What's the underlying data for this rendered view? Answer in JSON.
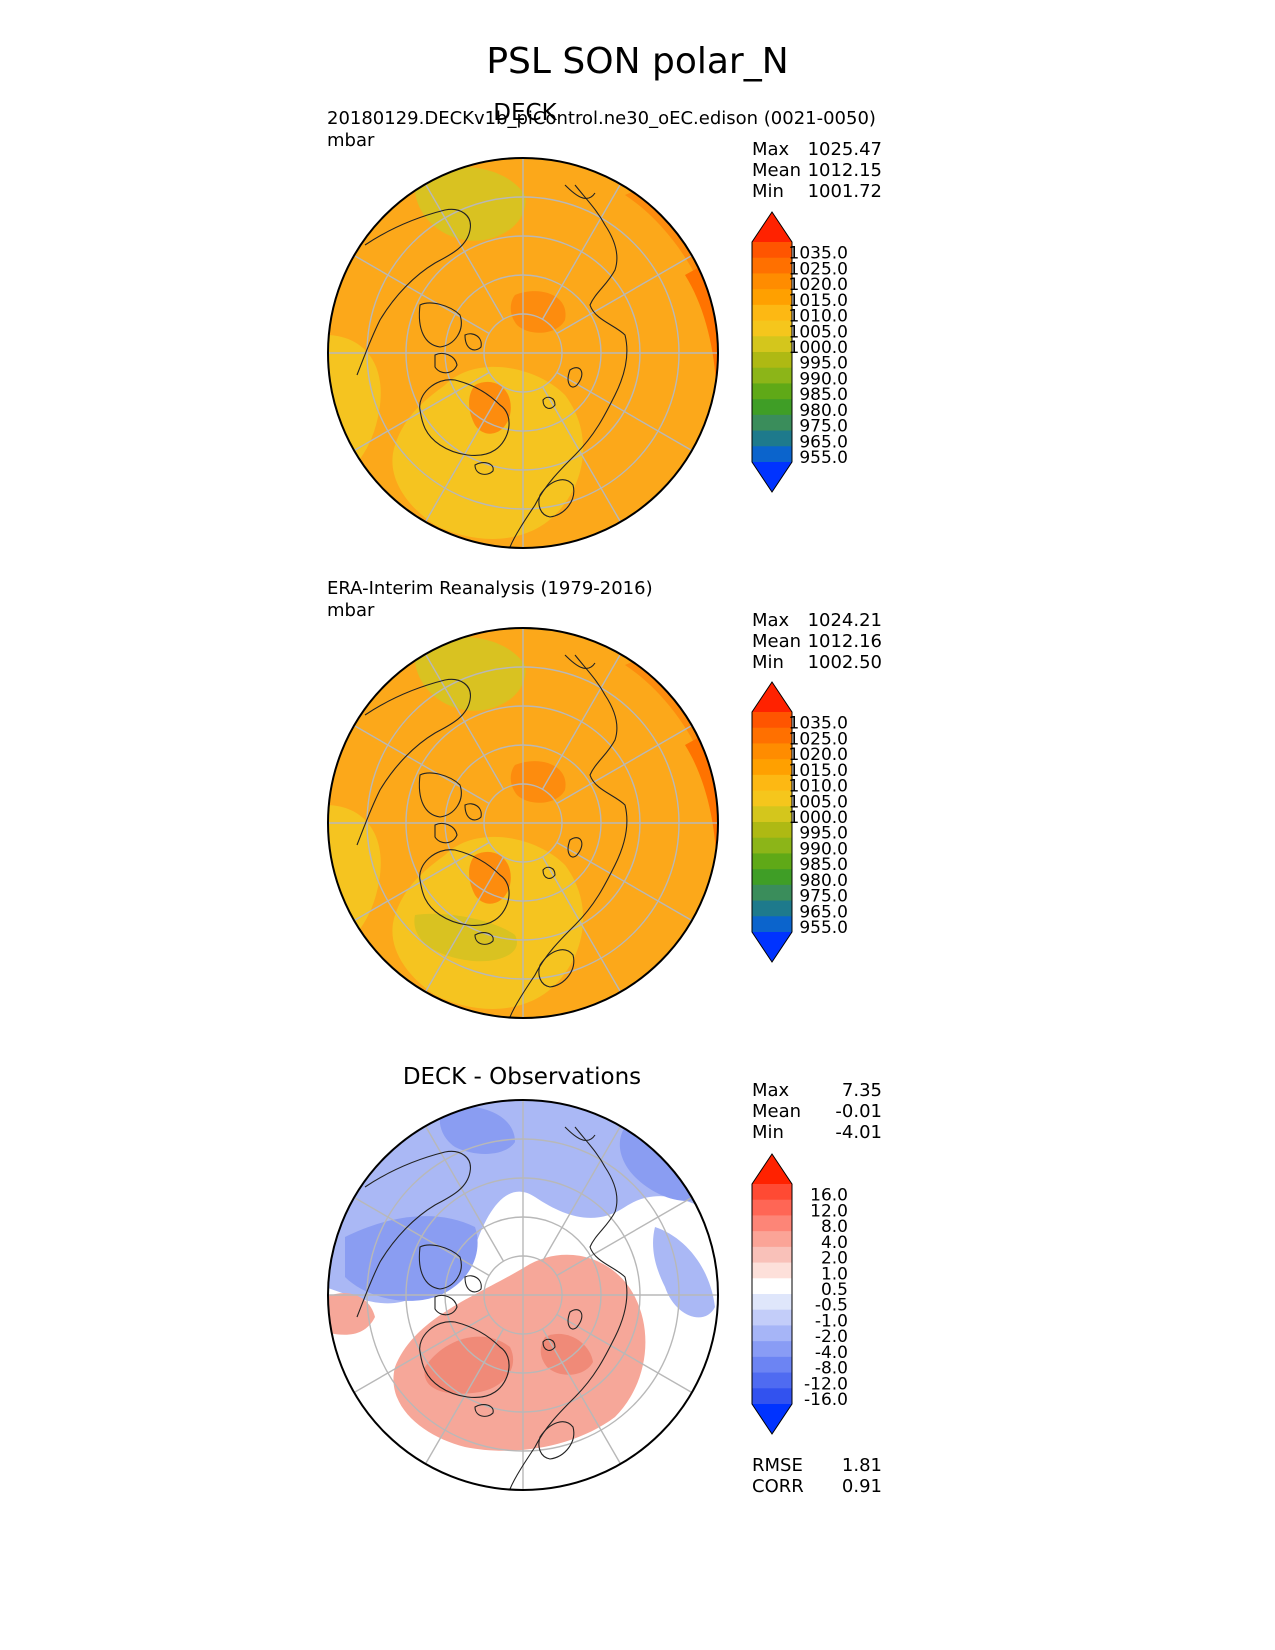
{
  "title": "PSL SON polar_N",
  "panels": [
    {
      "id": "test",
      "title": "DECK",
      "subtitle": "20180129.DECKv1b_piControl.ne30_oEC.edison (0021-0050)",
      "units": "mbar",
      "stats": [
        {
          "label": "Max",
          "value": "1025.47"
        },
        {
          "label": "Mean",
          "value": "1012.15"
        },
        {
          "label": "Min",
          "value": "1001.72"
        }
      ],
      "colorbar": {
        "levels": [
          "1035.0",
          "1025.0",
          "1020.0",
          "1015.0",
          "1010.0",
          "1005.0",
          "1000.0",
          "995.0",
          "990.0",
          "985.0",
          "980.0",
          "975.0",
          "965.0",
          "955.0"
        ],
        "colors": [
          "#ff2200",
          "#ff5500",
          "#ff7000",
          "#ff8c00",
          "#ffa000",
          "#fdb813",
          "#f5c61c",
          "#d4c61c",
          "#aeb913",
          "#8cb518",
          "#5fa917",
          "#3f9e26",
          "#3a8d5b",
          "#1e7a8c",
          "#0b64cc",
          "#0033ff"
        ]
      },
      "stats_below": []
    },
    {
      "id": "reference",
      "title": "",
      "subtitle": "ERA-Interim Reanalysis (1979-2016)",
      "units": "mbar",
      "stats": [
        {
          "label": "Max",
          "value": "1024.21"
        },
        {
          "label": "Mean",
          "value": "1012.16"
        },
        {
          "label": "Min",
          "value": "1002.50"
        }
      ],
      "colorbar": {
        "levels": [
          "1035.0",
          "1025.0",
          "1020.0",
          "1015.0",
          "1010.0",
          "1005.0",
          "1000.0",
          "995.0",
          "990.0",
          "985.0",
          "980.0",
          "975.0",
          "965.0",
          "955.0"
        ],
        "colors": [
          "#ff2200",
          "#ff5500",
          "#ff7000",
          "#ff8c00",
          "#ffa000",
          "#fdb813",
          "#f5c61c",
          "#d4c61c",
          "#aeb913",
          "#8cb518",
          "#5fa917",
          "#3f9e26",
          "#3a8d5b",
          "#1e7a8c",
          "#0b64cc",
          "#0033ff"
        ]
      },
      "stats_below": []
    },
    {
      "id": "diff",
      "title": "DECK - Observations",
      "subtitle": "",
      "units": "",
      "stats": [
        {
          "label": "Max",
          "value": "7.35"
        },
        {
          "label": "Mean",
          "value": "-0.01"
        },
        {
          "label": "Min",
          "value": "-4.01"
        }
      ],
      "colorbar": {
        "levels": [
          "16.0",
          "12.0",
          "8.0",
          "4.0",
          "2.0",
          "1.0",
          "0.5",
          "-0.5",
          "-1.0",
          "-2.0",
          "-4.0",
          "-8.0",
          "-12.0",
          "-16.0"
        ],
        "colors": [
          "#ff2200",
          "#ff4a33",
          "#ff6655",
          "#fd8577",
          "#fba497",
          "#f9c1b9",
          "#fde0da",
          "#ffffff",
          "#dfe6fb",
          "#c3cdf9",
          "#a6b5f7",
          "#899cf5",
          "#6c84f3",
          "#4f6bf1",
          "#3252ef",
          "#0033ff"
        ]
      },
      "stats_below": [
        {
          "label": "RMSE",
          "value": "1.81"
        },
        {
          "label": "CORR",
          "value": "0.91"
        }
      ]
    }
  ],
  "map_colors": {
    "base_abs": "#fca81a",
    "light_abs": "#f5c420",
    "greenish_abs": "#d9c221",
    "dark_abs": "#fd8c0e",
    "edge_abs": "#ff7300",
    "diff_white": "#ffffff",
    "diff_blue": "#aab8f5",
    "diff_blue_dark": "#8a9df2",
    "diff_red": "#f6a799",
    "diff_red_dark": "#f08a78",
    "grid": "#b8b8b8",
    "coast": "#222222"
  }
}
